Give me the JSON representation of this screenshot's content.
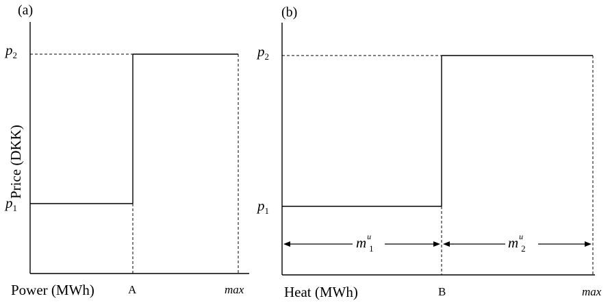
{
  "panel_a": {
    "label": "(a)",
    "ylabel": "Price (DKK)",
    "xlabel": "Power (MWh)",
    "tick_A": "A",
    "tick_max": "max",
    "p1_base": "p",
    "p1_sub": "1",
    "p2_base": "p",
    "p2_sub": "2"
  },
  "panel_b": {
    "label": "(b)",
    "xlabel": "Heat (MWh)",
    "tick_B": "B",
    "tick_max": "max",
    "p1_base": "p",
    "p1_sub": "1",
    "p2_base": "p",
    "p2_sub": "2",
    "m1_base": "m",
    "m1_sup": "u",
    "m1_sub": "1",
    "m2_base": "m",
    "m2_sup": "u",
    "m2_sub": "2"
  }
}
